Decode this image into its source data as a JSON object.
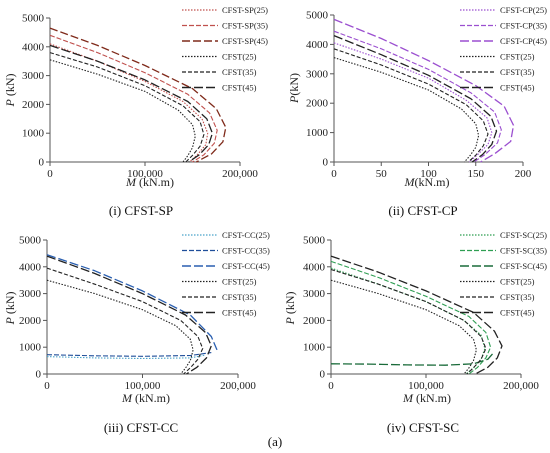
{
  "figure_label": "(a)",
  "chart_data": [
    {
      "type": "line",
      "caption": "(i) CFST-SP",
      "xlabel_italic": "M",
      "xlabel_unit": " (kN.m)",
      "ylabel_italic": "P",
      "ylabel_unit": " (kN)",
      "xlim": [
        0,
        200000
      ],
      "ylim": [
        0,
        5000
      ],
      "xticks": [
        0,
        100000,
        200000
      ],
      "xtick_labels": [
        "0",
        "100,000",
        "200,000"
      ],
      "yticks": [
        0,
        1000,
        2000,
        3000,
        4000,
        5000
      ],
      "ytick_labels": [
        "0",
        "1000",
        "2000",
        "3000",
        "4000",
        "5000"
      ],
      "series": [
        {
          "name": "CFST-SP(25)",
          "color": "#c0504d",
          "dash": "1.5,1.5",
          "width": 1.1,
          "x": [
            0,
            50000,
            100000,
            140000,
            160000,
            166000,
            164000,
            155000,
            147000
          ],
          "y": [
            4100,
            3500,
            2800,
            2100,
            1500,
            1000,
            600,
            250,
            0
          ]
        },
        {
          "name": "CFST-SP(35)",
          "color": "#c0504d",
          "dash": "5,2",
          "width": 1.1,
          "x": [
            0,
            50000,
            100000,
            145000,
            168000,
            176000,
            173000,
            162000,
            150000
          ],
          "y": [
            4400,
            3800,
            3100,
            2350,
            1700,
            1100,
            650,
            250,
            0
          ]
        },
        {
          "name": "CFST-SP(45)",
          "color": "#7f2a1a",
          "dash": "8,3",
          "width": 1.3,
          "x": [
            0,
            50000,
            100000,
            150000,
            175000,
            185000,
            182000,
            170000,
            154000
          ],
          "y": [
            4650,
            4050,
            3350,
            2550,
            1850,
            1200,
            700,
            280,
            0
          ]
        },
        {
          "name": "CFST(25)",
          "color": "#222222",
          "dash": "1.5,1.5",
          "width": 1.1,
          "x": [
            0,
            50000,
            100000,
            135000,
            150000,
            153000,
            150000,
            145000,
            140000
          ],
          "y": [
            3550,
            3050,
            2450,
            1800,
            1300,
            900,
            500,
            220,
            0
          ]
        },
        {
          "name": "CFST(35)",
          "color": "#222222",
          "dash": "4,2",
          "width": 1.1,
          "x": [
            0,
            50000,
            100000,
            140000,
            158000,
            162000,
            158000,
            150000,
            143000
          ],
          "y": [
            3800,
            3300,
            2650,
            1950,
            1400,
            950,
            550,
            230,
            0
          ]
        },
        {
          "name": "CFST(45)",
          "color": "#222222",
          "dash": "9,3",
          "width": 1.3,
          "x": [
            0,
            50000,
            100000,
            145000,
            165000,
            171000,
            167000,
            157000,
            146000
          ],
          "y": [
            4050,
            3500,
            2850,
            2100,
            1500,
            1000,
            600,
            250,
            0
          ]
        }
      ]
    },
    {
      "type": "line",
      "caption": "(ii) CFST-CP",
      "xlabel_italic": "M",
      "xlabel_unit": "(kN.m)",
      "ylabel_italic": "P",
      "ylabel_unit": "(kN)",
      "xlim": [
        0,
        200
      ],
      "ylim": [
        0,
        5000
      ],
      "xticks": [
        0,
        50,
        100,
        150,
        200
      ],
      "xtick_labels": [
        "0",
        "50",
        "100",
        "150",
        "200"
      ],
      "yticks": [
        0,
        1000,
        2000,
        3000,
        4000,
        5000
      ],
      "ytick_labels": [
        "0",
        "1000",
        "2000",
        "3000",
        "4000",
        "5000"
      ],
      "series": [
        {
          "name": "CFST-CP(25)",
          "color": "#9b4fd0",
          "dash": "1.5,1.5",
          "width": 1.1,
          "x": [
            0,
            50,
            100,
            140,
            162,
            167,
            163,
            152,
            143
          ],
          "y": [
            4050,
            3500,
            2850,
            2100,
            1500,
            1000,
            600,
            250,
            0
          ]
        },
        {
          "name": "CFST-CP(35)",
          "color": "#9b4fd0",
          "dash": "5,2",
          "width": 1.1,
          "x": [
            0,
            50,
            100,
            145,
            170,
            177,
            173,
            160,
            148
          ],
          "y": [
            4450,
            3850,
            3150,
            2350,
            1700,
            1100,
            650,
            260,
            0
          ]
        },
        {
          "name": "CFST-CP(45)",
          "color": "#9b4fd0",
          "dash": "9,3",
          "width": 1.3,
          "x": [
            0,
            50,
            100,
            150,
            180,
            190,
            187,
            170,
            155
          ],
          "y": [
            4850,
            4200,
            3450,
            2600,
            1900,
            1250,
            700,
            280,
            0
          ]
        },
        {
          "name": "CFST(25)",
          "color": "#222222",
          "dash": "1.5,1.5",
          "width": 1.1,
          "x": [
            0,
            50,
            100,
            135,
            150,
            153,
            150,
            144,
            138
          ],
          "y": [
            3550,
            3050,
            2450,
            1800,
            1300,
            900,
            500,
            220,
            0
          ]
        },
        {
          "name": "CFST(35)",
          "color": "#222222",
          "dash": "4,2",
          "width": 1.1,
          "x": [
            0,
            50,
            100,
            140,
            158,
            163,
            158,
            150,
            142
          ],
          "y": [
            3850,
            3300,
            2650,
            1950,
            1400,
            950,
            550,
            230,
            0
          ]
        },
        {
          "name": "CFST(45)",
          "color": "#222222",
          "dash": "9,3",
          "width": 1.3,
          "x": [
            0,
            50,
            100,
            145,
            166,
            172,
            167,
            157,
            146
          ],
          "y": [
            4300,
            3650,
            2950,
            2150,
            1550,
            1050,
            600,
            250,
            0
          ]
        }
      ]
    },
    {
      "type": "line",
      "caption": "(iii) CFST-CC",
      "xlabel_italic": "M",
      "xlabel_unit": " (kN.m)",
      "ylabel_italic": "P",
      "ylabel_unit": " (kN)",
      "xlim": [
        0,
        200000
      ],
      "ylim": [
        0,
        5000
      ],
      "xticks": [
        0,
        100000,
        200000
      ],
      "xtick_labels": [
        "0",
        "100,000",
        "200,000"
      ],
      "yticks": [
        0,
        1000,
        2000,
        3000,
        4000,
        5000
      ],
      "ytick_labels": [
        "0",
        "1000",
        "2000",
        "3000",
        "4000",
        "5000"
      ],
      "series": [
        {
          "name": "CFST-CC(25)",
          "color": "#4aa3c9",
          "dash": "1.5,1.5",
          "width": 1.1,
          "x": [
            0,
            50000,
            100000,
            150000,
            165000
          ],
          "y": [
            650,
            600,
            580,
            600,
            700
          ]
        },
        {
          "name": "CFST-CC(35)",
          "color": "#1f4e9a",
          "dash": "5,2",
          "width": 1.1,
          "x": [
            0,
            50000,
            100000,
            150000,
            172000
          ],
          "y": [
            720,
            680,
            660,
            690,
            800
          ]
        },
        {
          "name": "CFST-CC(45)",
          "color": "#2a5fb0",
          "dash": "9,3",
          "width": 1.3,
          "x": [
            0,
            50000,
            100000,
            150000,
            172000,
            178000
          ],
          "y": [
            4450,
            3850,
            3100,
            2200,
            1400,
            900
          ]
        },
        {
          "name": "CFST(25)",
          "color": "#222222",
          "dash": "1.5,1.5",
          "width": 1.1,
          "x": [
            0,
            50000,
            100000,
            135000,
            150000,
            153000,
            150000,
            145000,
            140000
          ],
          "y": [
            3500,
            3000,
            2400,
            1800,
            1300,
            900,
            500,
            220,
            0
          ]
        },
        {
          "name": "CFST(35)",
          "color": "#222222",
          "dash": "4,2",
          "width": 1.1,
          "x": [
            0,
            50000,
            100000,
            140000,
            158000,
            163000,
            158000,
            150000,
            143000
          ],
          "y": [
            3950,
            3350,
            2700,
            2000,
            1400,
            950,
            550,
            230,
            0
          ]
        },
        {
          "name": "CFST(45)",
          "color": "#222222",
          "dash": "9,3",
          "width": 1.3,
          "x": [
            0,
            50000,
            100000,
            145000,
            166000,
            172000,
            167000,
            157000,
            146000
          ],
          "y": [
            4400,
            3750,
            3000,
            2200,
            1550,
            1050,
            600,
            250,
            0
          ]
        }
      ]
    },
    {
      "type": "line",
      "caption": "(iv) CFST-SC",
      "xlabel_italic": "M",
      "xlabel_unit": " (kN.m)",
      "ylabel_italic": "P",
      "ylabel_unit": " (kN)",
      "xlim": [
        0,
        200000
      ],
      "ylim": [
        0,
        5000
      ],
      "xticks": [
        0,
        100000,
        200000
      ],
      "xtick_labels": [
        "0",
        "100,000",
        "200,000"
      ],
      "yticks": [
        0,
        1000,
        2000,
        3000,
        4000,
        5000
      ],
      "ytick_labels": [
        "0",
        "1000",
        "2000",
        "3000",
        "4000",
        "5000"
      ],
      "series": [
        {
          "name": "CFST-SC(25)",
          "color": "#2e9e52",
          "dash": "1.5,1.5",
          "width": 1.1,
          "x": [
            0,
            50000,
            100000,
            140000,
            158000,
            162000,
            158000,
            150000,
            142000
          ],
          "y": [
            3950,
            3350,
            2700,
            2000,
            1450,
            950,
            550,
            230,
            0
          ]
        },
        {
          "name": "CFST-SC(35)",
          "color": "#2e9e52",
          "dash": "5,2",
          "width": 1.1,
          "x": [
            0,
            50000,
            100000,
            145000,
            163000,
            168000,
            163000,
            154000,
            145000
          ],
          "y": [
            4200,
            3600,
            2900,
            2150,
            1550,
            1000,
            600,
            240,
            0
          ]
        },
        {
          "name": "CFST-SC(45)",
          "color": "#1a6b3a",
          "dash": "9,3",
          "width": 1.3,
          "x": [
            0,
            40000,
            80000,
            120000,
            150000,
            165000,
            170000
          ],
          "y": [
            380,
            370,
            340,
            330,
            380,
            550,
            750
          ]
        },
        {
          "name": "CFST(25)",
          "color": "#222222",
          "dash": "1.5,1.5",
          "width": 1.1,
          "x": [
            0,
            50000,
            100000,
            135000,
            150000,
            153000,
            150000,
            145000,
            140000
          ],
          "y": [
            3500,
            3000,
            2400,
            1800,
            1300,
            900,
            500,
            220,
            0
          ]
        },
        {
          "name": "CFST(35)",
          "color": "#222222",
          "dash": "4,2",
          "width": 1.1,
          "x": [
            0,
            50000,
            100000,
            140000,
            158000,
            163000,
            158000,
            150000,
            143000
          ],
          "y": [
            3900,
            3350,
            2700,
            2000,
            1400,
            950,
            550,
            230,
            0
          ]
        },
        {
          "name": "CFST(45)",
          "color": "#222222",
          "dash": "9,3",
          "width": 1.3,
          "x": [
            0,
            50000,
            100000,
            150000,
            172000,
            180000,
            175000,
            165000,
            152000
          ],
          "y": [
            4400,
            3800,
            3100,
            2300,
            1600,
            1050,
            600,
            250,
            0
          ]
        }
      ]
    }
  ]
}
